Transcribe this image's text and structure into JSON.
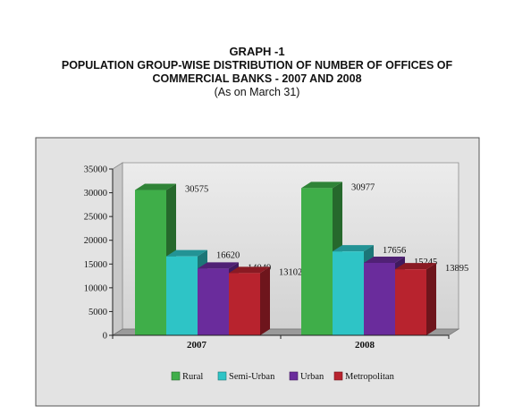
{
  "header": {
    "line1": "GRAPH -1",
    "line2": "POPULATION GROUP-WISE DISTRIBUTION OF NUMBER OF OFFICES OF",
    "line3": "COMMERCIAL BANKS - 2007 AND 2008",
    "line4": "(As on March 31)"
  },
  "chart_data": {
    "type": "bar",
    "categories": [
      "2007",
      "2008"
    ],
    "series": [
      {
        "name": "Rural",
        "values": [
          30575,
          30977
        ],
        "color": "#3fae49"
      },
      {
        "name": "Semi-Urban",
        "values": [
          16620,
          17656
        ],
        "color": "#2ec4c6"
      },
      {
        "name": "Urban",
        "values": [
          14049,
          15245
        ],
        "color": "#6a2c9c"
      },
      {
        "name": "Metropolitan",
        "values": [
          13102,
          13895
        ],
        "color": "#b8232e"
      }
    ],
    "ylim": [
      0,
      35000
    ],
    "yticks": [
      0,
      5000,
      10000,
      15000,
      20000,
      25000,
      30000,
      35000
    ],
    "legend_position": "bottom",
    "grid": false,
    "style": "3d-bar"
  }
}
